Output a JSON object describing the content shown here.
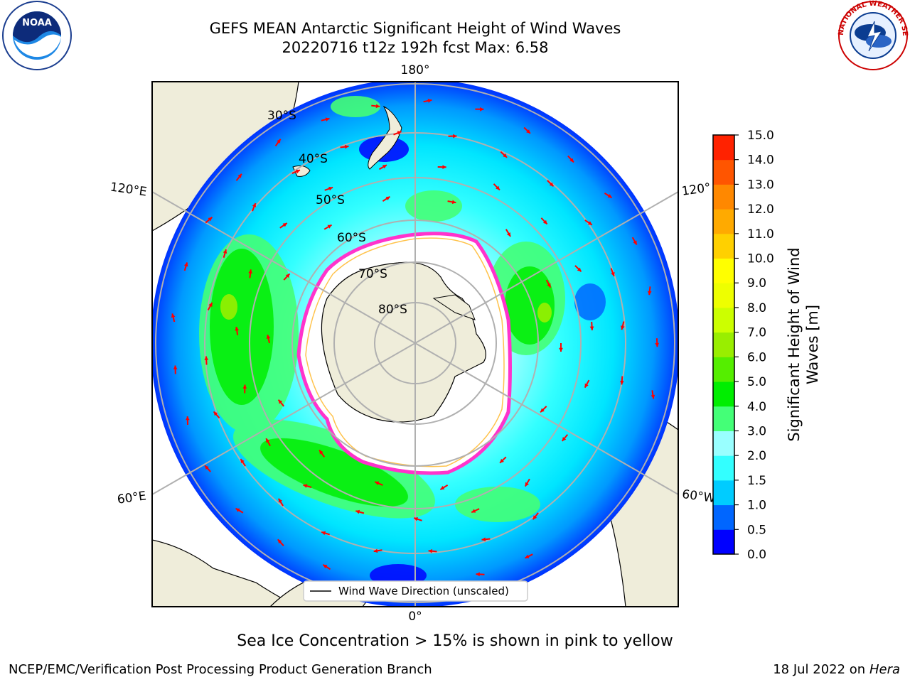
{
  "header": {
    "title_line1": "GEFS MEAN Antarctic Significant Height of Wind Waves",
    "title_line2": "20220716 t12z 192h fcst   Max: 6.58"
  },
  "logos": {
    "left": {
      "name": "noaa-logo",
      "text": "NOAA"
    },
    "right": {
      "name": "national-weather-service-logo",
      "text": "NATIONAL WEATHER SERVICE"
    }
  },
  "map": {
    "longitude_labels": [
      "180°",
      "120°E",
      "120°",
      "60°E",
      "60°W",
      "0°"
    ],
    "latitude_labels": [
      "30°S",
      "40°S",
      "50°S",
      "60°S",
      "70°S",
      "80°S"
    ],
    "legend_label": "Wind Wave Direction (unscaled)",
    "colors": {
      "land": "#efedda",
      "ocean_outside": "#ffffff",
      "ice_edge": "#ff33cc",
      "arrow": "#ff0000",
      "grid": "#b0b0b0"
    }
  },
  "colorbar": {
    "label_line1": "Significant Height of Wind",
    "label_line2": "Waves [m]",
    "ticks": [
      "0.0",
      "0.5",
      "1.0",
      "1.5",
      "2.0",
      "3.0",
      "4.0",
      "5.0",
      "6.0",
      "7.0",
      "8.0",
      "9.0",
      "10.0",
      "11.0",
      "12.0",
      "13.0",
      "14.0",
      "15.0"
    ],
    "colors": [
      "#0000ff",
      "#0066ff",
      "#00ccff",
      "#33ffff",
      "#99ffff",
      "#44ff77",
      "#00ee00",
      "#55ee00",
      "#99ee00",
      "#ccff00",
      "#eeff00",
      "#ffff00",
      "#ffd000",
      "#ffaa00",
      "#ff8800",
      "#ff5500",
      "#ff2200",
      "#ff0000"
    ]
  },
  "caption": "Sea Ice Concentration > 15% is shown in pink to yellow",
  "footer": {
    "left": "NCEP/EMC/Verification Post Processing Product Generation Branch",
    "right_date": "18 Jul 2022 on ",
    "right_host": "Hera"
  }
}
